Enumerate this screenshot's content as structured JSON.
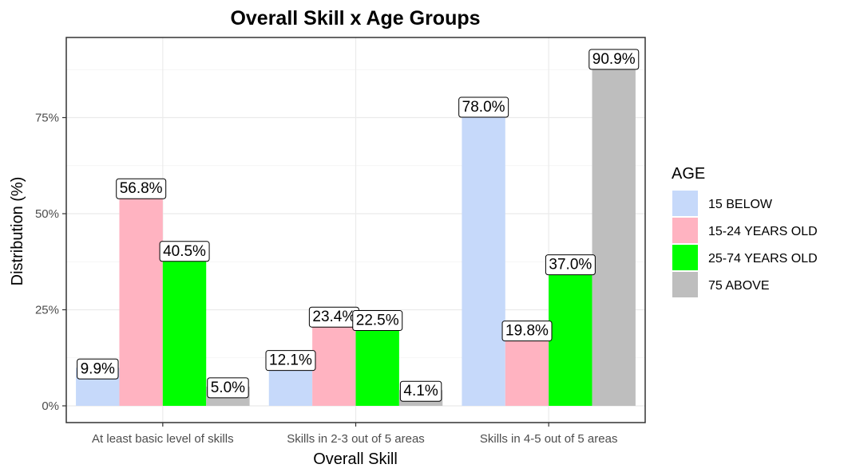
{
  "chart_data": {
    "type": "bar",
    "title": "Overall Skill x Age Groups",
    "xlabel": "Overall Skill",
    "ylabel": "Distribution (%)",
    "ylim": [
      0,
      1
    ],
    "yticks": [
      {
        "value": 0,
        "label": "0%"
      },
      {
        "value": 0.25,
        "label": "25%"
      },
      {
        "value": 0.5,
        "label": "50%"
      },
      {
        "value": 0.75,
        "label": "75%"
      }
    ],
    "categories": [
      "At least basic level of skills",
      "Skills in 2-3 out of 5 areas",
      "Skills in 4-5 out of 5 areas"
    ],
    "series": [
      {
        "name": "15 BELOW",
        "color": "#c6d9fa",
        "values": [
          0.099,
          0.121,
          0.78
        ],
        "labels": [
          "9.9%",
          "12.1%",
          "78.0%"
        ]
      },
      {
        "name": "15-24 YEARS OLD",
        "color": "#ffb3c1",
        "values": [
          0.568,
          0.234,
          0.198
        ],
        "labels": [
          "56.8%",
          "23.4%",
          "19.8%"
        ]
      },
      {
        "name": "25-74 YEARS OLD",
        "color": "#00ff00",
        "values": [
          0.405,
          0.225,
          0.37
        ],
        "labels": [
          "40.5%",
          "22.5%",
          "37.0%"
        ]
      },
      {
        "name": "75 ABOVE",
        "color": "#bebebe",
        "values": [
          0.05,
          0.041,
          0.909
        ],
        "labels": [
          "5.0%",
          "4.1%",
          "90.9%"
        ]
      }
    ],
    "legend": {
      "title": "AGE",
      "position": "right"
    },
    "grid": true
  }
}
